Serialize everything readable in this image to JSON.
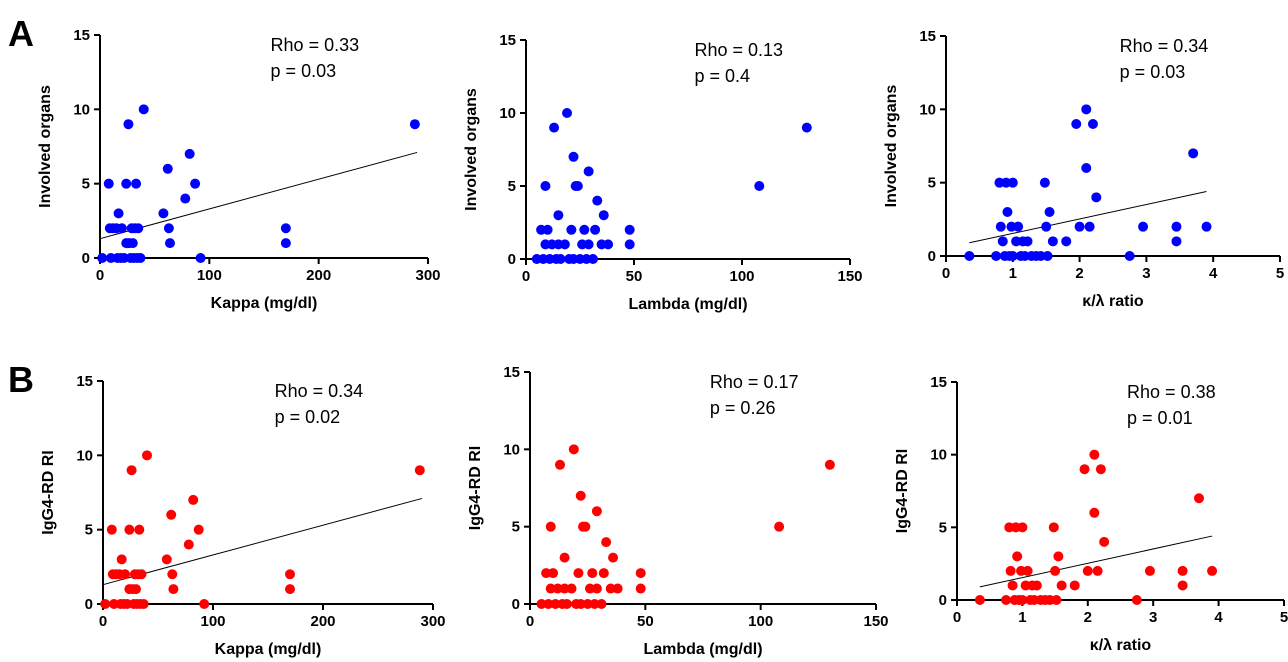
{
  "panel_labels": [
    "A",
    "B"
  ],
  "chart_data": [
    {
      "type": "scatter",
      "row": "A",
      "color": "#0000ff",
      "xlabel": "Kappa (mg/dl)",
      "ylabel": "Involved organs",
      "xlim": [
        0,
        300
      ],
      "ylim": [
        0,
        15
      ],
      "xticks": [
        "0",
        "100",
        "200",
        "300"
      ],
      "yticks": [
        "0",
        "5",
        "10",
        "15"
      ],
      "annotation": [
        "Rho = 0.33",
        "p = 0.03"
      ],
      "trend": {
        "x": [
          0,
          290
        ],
        "y": [
          1.3,
          7.1
        ]
      },
      "points": [
        [
          2,
          0
        ],
        [
          8,
          5
        ],
        [
          9,
          2
        ],
        [
          10,
          0
        ],
        [
          12,
          2
        ],
        [
          15,
          2
        ],
        [
          16,
          0
        ],
        [
          17,
          3
        ],
        [
          19,
          0
        ],
        [
          20,
          2
        ],
        [
          22,
          0
        ],
        [
          24,
          5
        ],
        [
          24,
          1
        ],
        [
          26,
          9
        ],
        [
          27,
          1
        ],
        [
          28,
          0
        ],
        [
          29,
          2
        ],
        [
          30,
          1
        ],
        [
          31,
          0
        ],
        [
          32,
          2
        ],
        [
          33,
          5
        ],
        [
          35,
          2
        ],
        [
          34,
          0
        ],
        [
          37,
          0
        ],
        [
          40,
          10
        ],
        [
          58,
          3
        ],
        [
          62,
          6
        ],
        [
          63,
          2
        ],
        [
          64,
          1
        ],
        [
          78,
          4
        ],
        [
          82,
          7
        ],
        [
          87,
          5
        ],
        [
          92,
          0
        ],
        [
          170,
          2
        ],
        [
          170,
          1
        ],
        [
          288,
          9
        ]
      ]
    },
    {
      "type": "scatter",
      "row": "A",
      "color": "#0000ff",
      "xlabel": "Lambda (mg/dl)",
      "ylabel": "Involved organs",
      "xlim": [
        0,
        150
      ],
      "ylim": [
        0,
        15
      ],
      "xticks": [
        "0",
        "50",
        "100",
        "150"
      ],
      "yticks": [
        "0",
        "5",
        "10",
        "15"
      ],
      "annotation": [
        "Rho = 0.13",
        "p = 0.4"
      ],
      "trend": null,
      "points": [
        [
          5,
          0
        ],
        [
          7,
          2
        ],
        [
          8,
          0
        ],
        [
          9,
          1
        ],
        [
          9,
          5
        ],
        [
          10,
          2
        ],
        [
          11,
          0
        ],
        [
          12,
          1
        ],
        [
          13,
          9
        ],
        [
          14,
          0
        ],
        [
          15,
          3
        ],
        [
          15,
          1
        ],
        [
          16,
          0
        ],
        [
          18,
          1
        ],
        [
          19,
          10
        ],
        [
          20,
          0
        ],
        [
          21,
          2
        ],
        [
          22,
          0
        ],
        [
          22,
          7
        ],
        [
          23,
          5
        ],
        [
          24,
          5
        ],
        [
          25,
          0
        ],
        [
          26,
          1
        ],
        [
          27,
          2
        ],
        [
          28,
          0
        ],
        [
          29,
          6
        ],
        [
          29,
          1
        ],
        [
          31,
          0
        ],
        [
          32,
          2
        ],
        [
          33,
          4
        ],
        [
          35,
          1
        ],
        [
          36,
          3
        ],
        [
          38,
          1
        ],
        [
          48,
          2
        ],
        [
          48,
          1
        ],
        [
          108,
          5
        ],
        [
          130,
          9
        ]
      ]
    },
    {
      "type": "scatter",
      "row": "A",
      "color": "#0000ff",
      "xlabel": "κ/λ ratio",
      "ylabel": "Involved organs",
      "xlim": [
        0,
        5
      ],
      "ylim": [
        0,
        15
      ],
      "xticks": [
        "0",
        "1",
        "2",
        "3",
        "4",
        "5"
      ],
      "yticks": [
        "0",
        "5",
        "10",
        "15"
      ],
      "annotation": [
        "Rho = 0.34",
        "p = 0.03"
      ],
      "trend": {
        "x": [
          0.35,
          3.9
        ],
        "y": [
          0.9,
          4.4
        ]
      },
      "points": [
        [
          0.35,
          0
        ],
        [
          0.75,
          0
        ],
        [
          0.8,
          5
        ],
        [
          0.82,
          2
        ],
        [
          0.85,
          1
        ],
        [
          0.88,
          0
        ],
        [
          0.9,
          5
        ],
        [
          0.92,
          3
        ],
        [
          0.95,
          0
        ],
        [
          0.98,
          2
        ],
        [
          1.0,
          5
        ],
        [
          1.0,
          0
        ],
        [
          1.05,
          1
        ],
        [
          1.08,
          2
        ],
        [
          1.12,
          0
        ],
        [
          1.15,
          1
        ],
        [
          1.18,
          0
        ],
        [
          1.22,
          1
        ],
        [
          1.28,
          0
        ],
        [
          1.35,
          0
        ],
        [
          1.42,
          0
        ],
        [
          1.48,
          5
        ],
        [
          1.5,
          2
        ],
        [
          1.52,
          0
        ],
        [
          1.55,
          3
        ],
        [
          1.6,
          1
        ],
        [
          1.8,
          1
        ],
        [
          1.95,
          9
        ],
        [
          2.0,
          2
        ],
        [
          2.1,
          10
        ],
        [
          2.1,
          6
        ],
        [
          2.15,
          2
        ],
        [
          2.2,
          9
        ],
        [
          2.25,
          4
        ],
        [
          2.75,
          0
        ],
        [
          2.95,
          2
        ],
        [
          3.45,
          2
        ],
        [
          3.45,
          1
        ],
        [
          3.7,
          7
        ],
        [
          3.9,
          2
        ]
      ]
    },
    {
      "type": "scatter",
      "row": "B",
      "color": "#ff0000",
      "xlabel": "Kappa (mg/dl)",
      "ylabel": "IgG4-RD RI",
      "xlim": [
        0,
        300
      ],
      "ylim": [
        0,
        15
      ],
      "xticks": [
        "0",
        "100",
        "200",
        "300"
      ],
      "yticks": [
        "0",
        "5",
        "10",
        "15"
      ],
      "annotation": [
        "Rho = 0.34",
        "p = 0.02"
      ],
      "trend": {
        "x": [
          0,
          290
        ],
        "y": [
          1.3,
          7.1
        ]
      },
      "points": [
        [
          2,
          0
        ],
        [
          8,
          5
        ],
        [
          9,
          2
        ],
        [
          10,
          0
        ],
        [
          12,
          2
        ],
        [
          15,
          2
        ],
        [
          16,
          0
        ],
        [
          17,
          3
        ],
        [
          19,
          0
        ],
        [
          20,
          2
        ],
        [
          22,
          0
        ],
        [
          24,
          5
        ],
        [
          24,
          1
        ],
        [
          26,
          9
        ],
        [
          27,
          1
        ],
        [
          28,
          0
        ],
        [
          29,
          2
        ],
        [
          30,
          1
        ],
        [
          31,
          0
        ],
        [
          32,
          2
        ],
        [
          33,
          5
        ],
        [
          35,
          2
        ],
        [
          34,
          0
        ],
        [
          37,
          0
        ],
        [
          40,
          10
        ],
        [
          58,
          3
        ],
        [
          62,
          6
        ],
        [
          63,
          2
        ],
        [
          64,
          1
        ],
        [
          78,
          4
        ],
        [
          82,
          7
        ],
        [
          87,
          5
        ],
        [
          92,
          0
        ],
        [
          170,
          2
        ],
        [
          170,
          1
        ],
        [
          288,
          9
        ]
      ]
    },
    {
      "type": "scatter",
      "row": "B",
      "color": "#ff0000",
      "xlabel": "Lambda (mg/dl)",
      "ylabel": "IgG4-RD RI",
      "xlim": [
        0,
        150
      ],
      "ylim": [
        0,
        15
      ],
      "xticks": [
        "0",
        "50",
        "100",
        "150"
      ],
      "yticks": [
        "0",
        "5",
        "10",
        "15"
      ],
      "annotation": [
        "Rho = 0.17",
        "p = 0.26"
      ],
      "trend": null,
      "points": [
        [
          5,
          0
        ],
        [
          7,
          2
        ],
        [
          8,
          0
        ],
        [
          9,
          1
        ],
        [
          9,
          5
        ],
        [
          10,
          2
        ],
        [
          11,
          0
        ],
        [
          12,
          1
        ],
        [
          13,
          9
        ],
        [
          14,
          0
        ],
        [
          15,
          3
        ],
        [
          15,
          1
        ],
        [
          16,
          0
        ],
        [
          18,
          1
        ],
        [
          19,
          10
        ],
        [
          20,
          0
        ],
        [
          21,
          2
        ],
        [
          22,
          0
        ],
        [
          22,
          7
        ],
        [
          23,
          5
        ],
        [
          24,
          5
        ],
        [
          25,
          0
        ],
        [
          26,
          1
        ],
        [
          27,
          2
        ],
        [
          28,
          0
        ],
        [
          29,
          6
        ],
        [
          29,
          1
        ],
        [
          31,
          0
        ],
        [
          32,
          2
        ],
        [
          33,
          4
        ],
        [
          35,
          1
        ],
        [
          36,
          3
        ],
        [
          38,
          1
        ],
        [
          48,
          2
        ],
        [
          48,
          1
        ],
        [
          108,
          5
        ],
        [
          130,
          9
        ]
      ]
    },
    {
      "type": "scatter",
      "row": "B",
      "color": "#ff0000",
      "xlabel": "κ/λ ratio",
      "ylabel": "IgG4-RD RI",
      "xlim": [
        0,
        5
      ],
      "ylim": [
        0,
        15
      ],
      "xticks": [
        "0",
        "1",
        "2",
        "3",
        "4",
        "5"
      ],
      "yticks": [
        "0",
        "5",
        "10",
        "15"
      ],
      "annotation": [
        "Rho = 0.38",
        "p = 0.01"
      ],
      "trend": {
        "x": [
          0.35,
          3.9
        ],
        "y": [
          0.9,
          4.4
        ]
      },
      "points": [
        [
          0.35,
          0
        ],
        [
          0.75,
          0
        ],
        [
          0.8,
          5
        ],
        [
          0.82,
          2
        ],
        [
          0.85,
          1
        ],
        [
          0.88,
          0
        ],
        [
          0.9,
          5
        ],
        [
          0.92,
          3
        ],
        [
          0.95,
          0
        ],
        [
          0.98,
          2
        ],
        [
          1.0,
          5
        ],
        [
          1.0,
          0
        ],
        [
          1.05,
          1
        ],
        [
          1.08,
          2
        ],
        [
          1.12,
          0
        ],
        [
          1.15,
          1
        ],
        [
          1.18,
          0
        ],
        [
          1.22,
          1
        ],
        [
          1.28,
          0
        ],
        [
          1.35,
          0
        ],
        [
          1.42,
          0
        ],
        [
          1.48,
          5
        ],
        [
          1.5,
          2
        ],
        [
          1.52,
          0
        ],
        [
          1.55,
          3
        ],
        [
          1.6,
          1
        ],
        [
          1.8,
          1
        ],
        [
          1.95,
          9
        ],
        [
          2.0,
          2
        ],
        [
          2.1,
          10
        ],
        [
          2.1,
          6
        ],
        [
          2.15,
          2
        ],
        [
          2.2,
          9
        ],
        [
          2.25,
          4
        ],
        [
          2.75,
          0
        ],
        [
          2.95,
          2
        ],
        [
          3.45,
          2
        ],
        [
          3.45,
          1
        ],
        [
          3.7,
          7
        ],
        [
          3.9,
          2
        ]
      ]
    }
  ]
}
